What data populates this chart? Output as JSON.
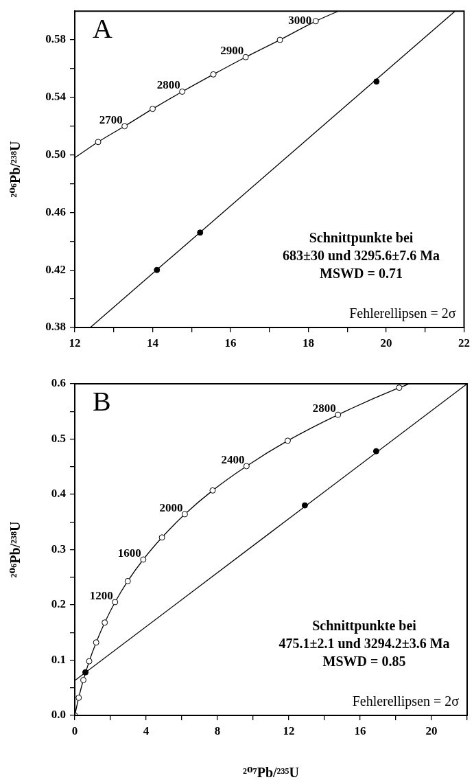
{
  "chart_data": [
    {
      "type": "scatter",
      "title": "A",
      "ylabel": "²⁰⁶Pb/²³⁸U",
      "xlim": [
        12,
        22
      ],
      "ylim": [
        0.38,
        0.6
      ],
      "xticks": [
        12,
        {
          "value": 13,
          "label": null
        },
        14,
        {
          "value": 15,
          "label": null
        },
        16,
        {
          "value": 17,
          "label": null
        },
        18,
        {
          "value": 19,
          "label": null
        },
        20,
        {
          "value": 21,
          "label": null
        },
        22
      ],
      "yticks": [
        0.38,
        {
          "value": 0.4,
          "label": null
        },
        0.42,
        {
          "value": 0.44,
          "label": null
        },
        0.46,
        {
          "value": 0.48,
          "label": null
        },
        {
          "value": 0.5,
          "label": "0.50"
        },
        {
          "value": 0.52,
          "label": null
        },
        0.54,
        {
          "value": 0.56,
          "label": null
        },
        0.58
      ],
      "grid": false,
      "legend": false,
      "series": [
        {
          "type": "line",
          "marker": "none",
          "color": "#000000",
          "x": [
            12.0,
            12.6,
            13.28,
            14.0,
            14.76,
            15.56,
            16.39,
            17.27,
            18.19,
            18.77
          ],
          "values": [
            0.498,
            0.509,
            0.52,
            0.532,
            0.544,
            0.556,
            0.568,
            0.58,
            0.593,
            0.6
          ]
        },
        {
          "type": "scatter",
          "marker": "circle",
          "color": "#ffffff",
          "x": [
            12.6,
            13.28,
            14.0,
            14.76,
            15.56,
            16.39,
            17.27,
            18.19
          ],
          "values": [
            0.509,
            0.52,
            0.532,
            0.544,
            0.556,
            0.568,
            0.58,
            0.593
          ]
        },
        {
          "type": "line",
          "marker": "none",
          "color": "#000000",
          "x": [
            12.4,
            21.77
          ],
          "values": [
            0.38,
            0.6
          ]
        },
        {
          "type": "scatter",
          "marker": "circle",
          "color": "#000000",
          "x": [
            14.11,
            15.22,
            19.75
          ],
          "values": [
            0.42,
            0.446,
            0.551
          ]
        }
      ],
      "annotations": [
        {
          "text": "2700",
          "x": 13.28,
          "y": 0.52
        },
        {
          "text": "2800",
          "x": 14.76,
          "y": 0.544
        },
        {
          "text": "2900",
          "x": 16.39,
          "y": 0.568
        },
        {
          "text": "3000",
          "x": 18.19,
          "y": 0.593
        },
        "Schnittpunkte bei\n683±30 und 3295.6±7.6 Ma\nMSWD = 0.71",
        "Fehlerellipsen = 2σ"
      ]
    },
    {
      "type": "scatter",
      "title": "B",
      "xlabel": "²⁰⁷Pb/²³⁵U",
      "ylabel": "²⁰⁶Pb/²³⁸U",
      "xlim": [
        0,
        22
      ],
      "ylim": [
        0,
        0.6
      ],
      "xticks": [
        0,
        {
          "value": 2,
          "label": null
        },
        4,
        {
          "value": 6,
          "label": null
        },
        8,
        {
          "value": 10,
          "label": null
        },
        12,
        {
          "value": 14,
          "label": null
        },
        16,
        {
          "value": 18,
          "label": null
        },
        20,
        {
          "value": 22,
          "label": null
        }
      ],
      "yticks": [
        {
          "value": 0,
          "label": "0.0"
        },
        {
          "value": 0.05,
          "label": null
        },
        0.1,
        {
          "value": 0.15,
          "label": null
        },
        0.2,
        {
          "value": 0.25,
          "label": null
        },
        0.3,
        {
          "value": 0.35,
          "label": null
        },
        0.4,
        {
          "value": 0.45,
          "label": null
        },
        0.5,
        {
          "value": 0.55,
          "label": null
        },
        0.6
      ],
      "grid": false,
      "legend": false,
      "series": [
        {
          "type": "line",
          "marker": "none",
          "color": "#000000",
          "x": [
            0,
            0.22,
            0.48,
            0.81,
            1.2,
            1.68,
            2.26,
            2.97,
            3.84,
            4.89,
            6.17,
            7.73,
            9.63,
            11.94,
            14.76,
            18.19,
            18.77
          ],
          "values": [
            0,
            0.032,
            0.064,
            0.098,
            0.132,
            0.168,
            0.205,
            0.243,
            0.282,
            0.322,
            0.364,
            0.407,
            0.451,
            0.497,
            0.544,
            0.593,
            0.6
          ]
        },
        {
          "type": "scatter",
          "marker": "circle",
          "color": "#ffffff",
          "x": [
            0,
            0.22,
            0.48,
            0.81,
            1.2,
            1.68,
            2.26,
            2.97,
            3.84,
            4.89,
            6.17,
            7.73,
            9.63,
            11.94,
            14.76,
            18.19
          ],
          "values": [
            0,
            0.032,
            0.064,
            0.098,
            0.132,
            0.168,
            0.205,
            0.243,
            0.282,
            0.322,
            0.364,
            0.407,
            0.451,
            0.497,
            0.544,
            0.593
          ]
        },
        {
          "type": "line",
          "marker": "none",
          "color": "#000000",
          "x": [
            0,
            22
          ],
          "values": [
            0.063,
            0.6
          ]
        },
        {
          "type": "scatter",
          "marker": "circle",
          "color": "#000000",
          "x": [
            0.6,
            12.9,
            16.9
          ],
          "values": [
            0.078,
            0.38,
            0.478
          ]
        }
      ],
      "annotations": [
        {
          "text": "1200",
          "x": 2.26,
          "y": 0.205
        },
        {
          "text": "1600",
          "x": 3.84,
          "y": 0.282
        },
        {
          "text": "2000",
          "x": 6.17,
          "y": 0.364
        },
        {
          "text": "2400",
          "x": 9.63,
          "y": 0.451
        },
        {
          "text": "2800",
          "x": 14.76,
          "y": 0.544
        },
        "Schnittpunkte bei\n475.1±2.1 und 3294.2±3.6 Ma\nMSWD = 0.85",
        "Fehlerellipsen = 2σ"
      ]
    }
  ]
}
